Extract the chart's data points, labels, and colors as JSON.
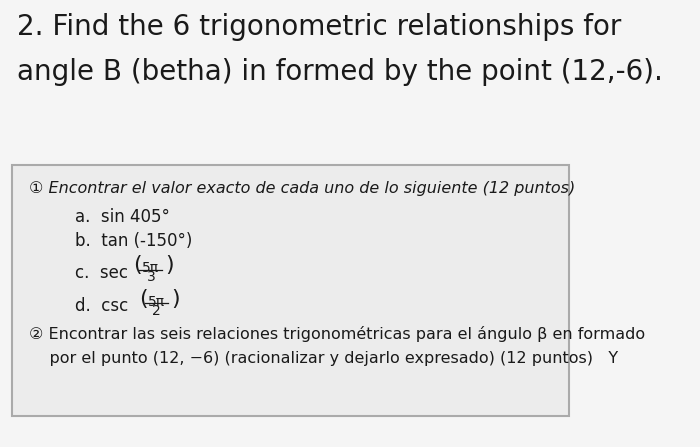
{
  "title_line1": "2. Find the 6 trigonometric relationships for",
  "title_line2": "angle B (betha) in formed by the point (12,-6).",
  "title_fontsize": 20,
  "bg_color": "#f0f0f0",
  "box_color": "#e8e8e8",
  "box_border": "#aaaaaa",
  "item1_header": "① Encontrar el valor exacto de cada uno de lo siguiente (12 puntos)",
  "item1_a": "a.  sin 405°",
  "item1_b": "b.  tan (-150°)",
  "item1_c_pre": "c.  sec ",
  "item1_c_frac_num": "5π",
  "item1_c_frac_den": "3",
  "item1_d_pre": "d.  csc ",
  "item1_d_frac_num": "5π",
  "item1_d_frac_den": "2",
  "item2_line1": "② Encontrar las seis relaciones trigonométricas para el ángulo β en formado",
  "item2_line2": "    por el punto (12, −6) (racionalizar y dejarlo expresado) (12 puntos)   Y",
  "text_color": "#1a1a1a",
  "main_fontsize": 12,
  "small_fontsize": 10
}
